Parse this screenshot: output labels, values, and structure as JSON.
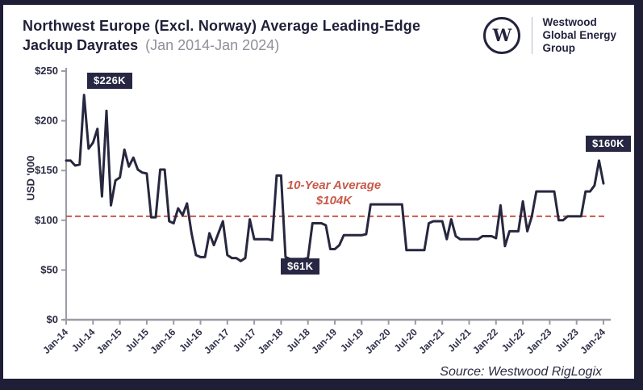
{
  "header": {
    "title_line1": "Northwest Europe (Excl. Norway) Average Leading-Edge",
    "title_line2_bold": "Jackup Dayrates",
    "title_line2_period": "(Jan 2014-Jan 2024)",
    "logo": {
      "monogram": "W",
      "company_line1": "Westwood",
      "company_line2": "Global Energy",
      "company_line3": "Group"
    }
  },
  "chart_data": {
    "type": "line",
    "title": "Northwest Europe (Excl. Norway) Average Leading-Edge Jackup Dayrates (Jan 2014-Jan 2024)",
    "ylabel": "USD '000",
    "ylim": [
      0,
      250
    ],
    "ytick_values": [
      0,
      50,
      100,
      150,
      200,
      250
    ],
    "ytick_labels": [
      "$0",
      "$50",
      "$100",
      "$150",
      "$200",
      "$250"
    ],
    "xtick_labels": [
      "Jan-14",
      "Jul-14",
      "Jan-15",
      "Jul-15",
      "Jan-16",
      "Jul-16",
      "Jan-17",
      "Jul-17",
      "Jan-18",
      "Jul-18",
      "Jan-19",
      "Jul-19",
      "Jan-20",
      "Jul-20",
      "Jan-21",
      "Jul-21",
      "Jan-22",
      "Jul-22",
      "Jan-23",
      "Jul-23",
      "Jan-24"
    ],
    "x_start": "Jan-14",
    "x_frequency": "monthly",
    "values": [
      160,
      160,
      155,
      156,
      226,
      172,
      178,
      192,
      124,
      210,
      115,
      140,
      143,
      171,
      154,
      163,
      151,
      148,
      147,
      103,
      103,
      151,
      151,
      99,
      97,
      112,
      105,
      117,
      87,
      65,
      63,
      63,
      87,
      75,
      87,
      99,
      65,
      62,
      62,
      59,
      62,
      101,
      81,
      81,
      81,
      81,
      80,
      145,
      145,
      63,
      61,
      61,
      61,
      61,
      62,
      97,
      97,
      97,
      95,
      71,
      71,
      75,
      85,
      85,
      85,
      85,
      85,
      86,
      116,
      116,
      116,
      116,
      116,
      116,
      116,
      116,
      70,
      70,
      70,
      70,
      70,
      97,
      99,
      99,
      99,
      81,
      101,
      84,
      81,
      81,
      81,
      81,
      81,
      84,
      84,
      84,
      82,
      115,
      74,
      89,
      89,
      89,
      119,
      89,
      104,
      129,
      129,
      129,
      129,
      129,
      100,
      100,
      104,
      104,
      104,
      104,
      129,
      129,
      135,
      160,
      137
    ],
    "average_line": {
      "value": 104,
      "label_line1": "10-Year Average",
      "label_line2": "$104K",
      "color": "#c7594a"
    },
    "annotations": [
      {
        "label": "$226K",
        "month": "May-14",
        "value": 226
      },
      {
        "label": "$61K",
        "month": "Apr-18",
        "value": 61
      },
      {
        "label": "$160K",
        "month": "Dec-23",
        "value": 160
      }
    ],
    "line_color": "#27273f",
    "axis_color": "#9b9ba3",
    "legend": "none",
    "grid": "off"
  },
  "source": {
    "text": "Source: Westwood RigLogix"
  }
}
